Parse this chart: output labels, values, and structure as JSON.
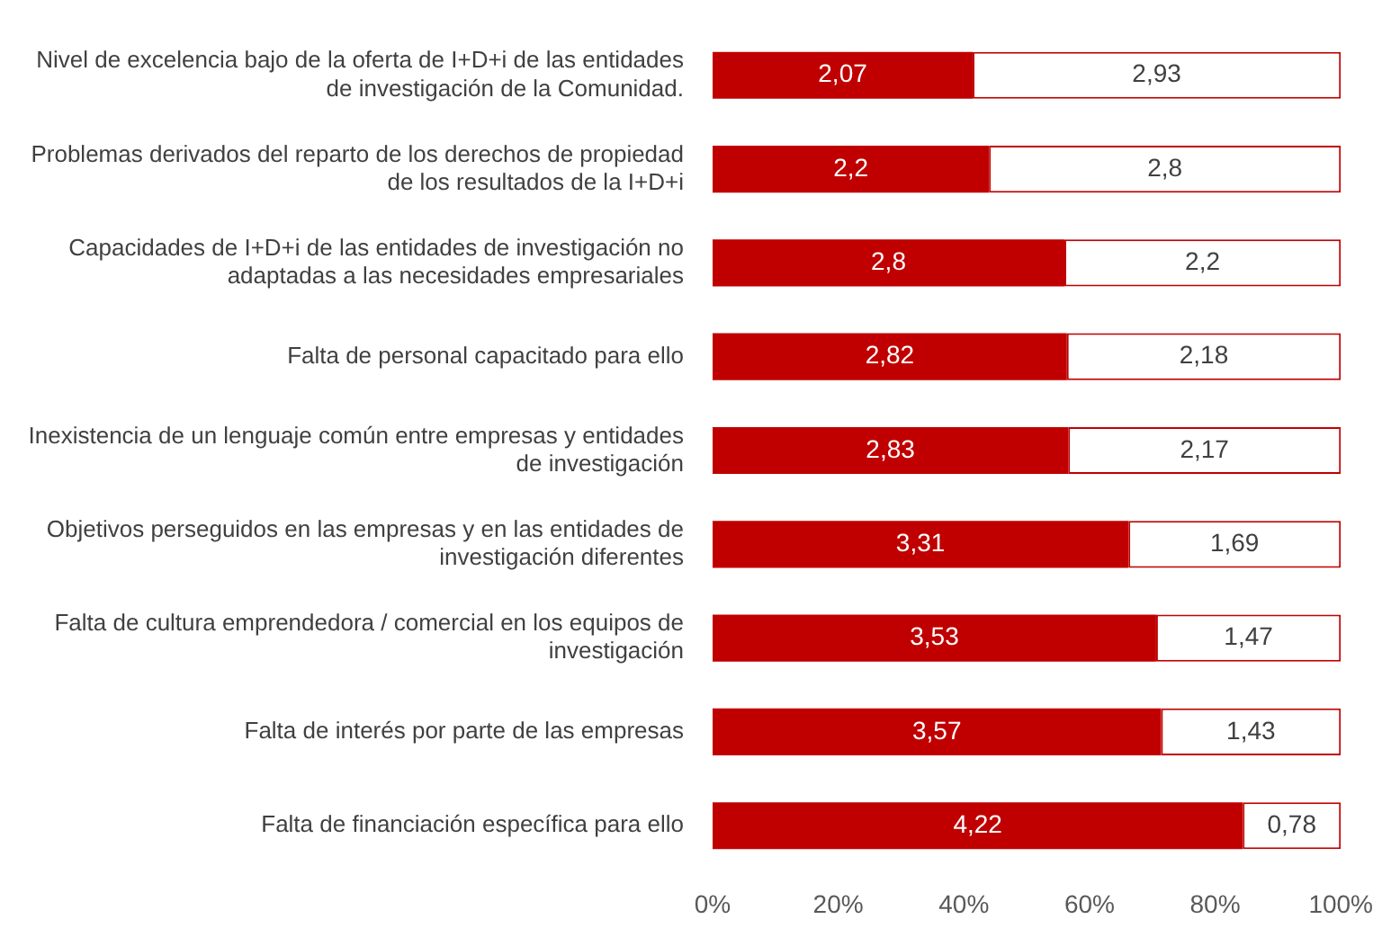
{
  "chart_data": {
    "type": "bar",
    "orientation": "horizontal",
    "stacked": true,
    "categories": [
      "Nivel de excelencia bajo de la oferta de I+D+i de las entidades de investigación de la Comunidad.",
      "Problemas derivados del reparto de los derechos de propiedad de los resultados de la I+D+i",
      "Capacidades de I+D+i de las entidades de investigación no adaptadas a las necesidades empresariales",
      "Falta de personal capacitado para ello",
      "Inexistencia de un lenguaje común entre empresas y entidades de investigación",
      "Objetivos perseguidos en las empresas y en las entidades de investigación diferentes",
      "Falta de cultura emprendedora / comercial en los equipos de investigación",
      "Falta de interés por parte de las empresas",
      "Falta de financiación específica para ello"
    ],
    "series": [
      {
        "color": "#c00000",
        "values": [
          2.07,
          2.2,
          2.8,
          2.82,
          2.83,
          3.31,
          3.53,
          3.57,
          4.22
        ],
        "value_labels": [
          "2,07",
          "2,2",
          "2,8",
          "2,82",
          "2,83",
          "3,31",
          "3,53",
          "3,57",
          "4,22"
        ]
      },
      {
        "color": "#ffffff",
        "values": [
          2.93,
          2.8,
          2.2,
          2.18,
          2.17,
          1.69,
          1.47,
          1.43,
          0.78
        ],
        "value_labels": [
          "2,93",
          "2,8",
          "2,2",
          "2,18",
          "2,17",
          "1,69",
          "1,47",
          "1,43",
          "0,78"
        ]
      }
    ],
    "xlim": [
      0,
      5
    ],
    "x2lim": [
      0,
      100
    ],
    "x2ticks": [
      {
        "value": 0,
        "label": "0%"
      },
      {
        "value": 20,
        "label": "20%"
      },
      {
        "value": 40,
        "label": "40%"
      },
      {
        "value": 60,
        "label": "60%"
      },
      {
        "value": 80,
        "label": "80%"
      },
      {
        "value": 100,
        "label": "100%"
      }
    ],
    "grid": false,
    "legend": false
  }
}
